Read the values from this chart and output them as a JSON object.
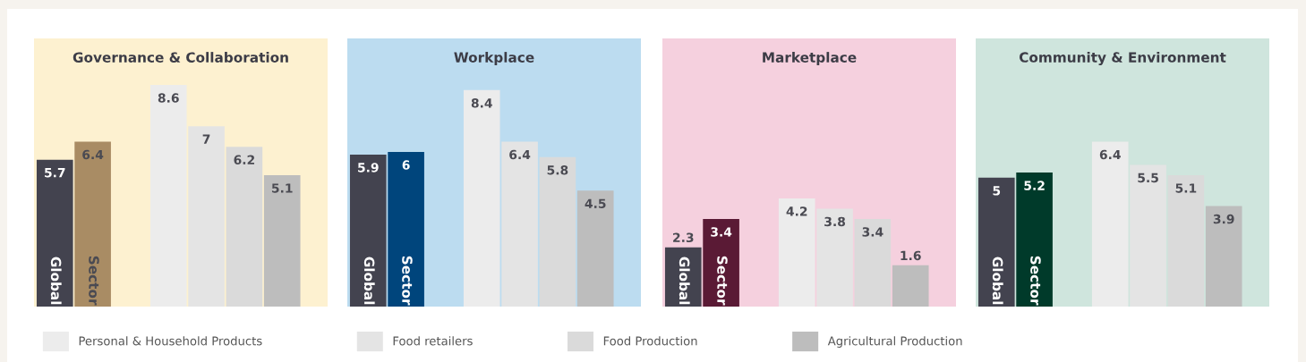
{
  "chart_data": [
    {
      "type": "bar",
      "title": "Governance & Collaboration",
      "categories": [
        "Global",
        "Sector",
        null,
        null,
        null,
        null,
        null
      ],
      "data_labels": true,
      "legend": "bottom",
      "series": [
        {
          "colors": [
            "#43434f",
            "#a98c64",
            null,
            null,
            null,
            null,
            null
          ],
          "values": [
            5.7,
            6.4,
            null,
            null,
            null,
            null,
            null
          ]
        },
        {
          "name": "Personal & Household Products",
          "color": "#ececec",
          "values": [
            null,
            null,
            null,
            8.6,
            null,
            null,
            null
          ]
        },
        {
          "name": "Food retailers",
          "color": "#e4e4e4",
          "values": [
            null,
            null,
            null,
            null,
            7,
            null,
            null
          ]
        },
        {
          "name": "Food Production",
          "color": "#dadada",
          "values": [
            null,
            null,
            null,
            null,
            null,
            6.2,
            null
          ]
        },
        {
          "name": "Agricultural Production",
          "color": "#bdbdbd",
          "values": [
            null,
            null,
            null,
            null,
            null,
            null,
            5.1
          ]
        }
      ]
    },
    {
      "type": "bar",
      "title": "Workplace",
      "categories": [
        "Global",
        "Sector",
        null,
        null,
        null,
        null,
        null
      ],
      "data_labels": true,
      "series": [
        {
          "colors": [
            "#43434f",
            "#00457c",
            null,
            null,
            null,
            null,
            null
          ],
          "values": [
            5.9,
            6,
            null,
            null,
            null,
            null,
            null
          ]
        },
        {
          "color": "#ececec",
          "values": [
            null,
            null,
            null,
            8.4,
            null,
            null,
            null
          ]
        },
        {
          "color": "#e4e4e4",
          "values": [
            null,
            null,
            null,
            null,
            6.4,
            null,
            null
          ]
        },
        {
          "color": "#dadada",
          "values": [
            null,
            null,
            null,
            null,
            null,
            5.8,
            null
          ]
        },
        {
          "color": "#bdbdbd",
          "values": [
            null,
            null,
            null,
            null,
            null,
            null,
            4.5
          ]
        }
      ]
    },
    {
      "type": "bar",
      "title": "Marketplace",
      "categories": [
        "Global",
        "Sector",
        null,
        null,
        null,
        null,
        null
      ],
      "data_labels": true,
      "series": [
        {
          "colors": [
            "#43434f",
            "#5a1a35",
            null,
            null,
            null,
            null,
            null
          ],
          "values": [
            2.3,
            3.4,
            null,
            null,
            null,
            null,
            null
          ]
        },
        {
          "color": "#ececec",
          "values": [
            null,
            null,
            null,
            4.2,
            null,
            null,
            null
          ]
        },
        {
          "color": "#e4e4e4",
          "values": [
            null,
            null,
            null,
            null,
            3.8,
            null,
            null
          ]
        },
        {
          "color": "#dadada",
          "values": [
            null,
            null,
            null,
            null,
            null,
            3.4,
            null
          ]
        },
        {
          "color": "#bdbdbd",
          "values": [
            null,
            null,
            null,
            null,
            null,
            null,
            1.6
          ]
        }
      ]
    },
    {
      "type": "bar",
      "title": "Community & Environment",
      "categories": [
        "Global",
        "Sector",
        null,
        null,
        null,
        null,
        null
      ],
      "data_labels": true,
      "series": [
        {
          "colors": [
            "#43434f",
            "#003a2a",
            null,
            null,
            null,
            null,
            null
          ],
          "values": [
            5,
            5.2,
            null,
            null,
            null,
            null,
            null
          ]
        },
        {
          "color": "#ececec",
          "values": [
            null,
            null,
            null,
            6.4,
            null,
            null,
            null
          ]
        },
        {
          "color": "#e4e4e4",
          "values": [
            null,
            null,
            null,
            null,
            5.5,
            null,
            null
          ]
        },
        {
          "color": "#dadada",
          "values": [
            null,
            null,
            null,
            null,
            null,
            5.1,
            null
          ]
        },
        {
          "color": "#bdbdbd",
          "values": [
            null,
            null,
            null,
            null,
            null,
            null,
            3.9
          ]
        }
      ]
    }
  ]
}
